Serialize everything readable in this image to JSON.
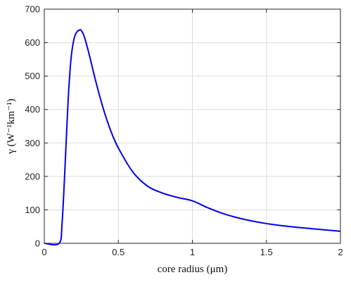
{
  "chart_data": {
    "type": "line",
    "title": "",
    "xlabel": "core radius (μm)",
    "ylabel": "γ (W⁻¹km⁻¹)",
    "xlim": [
      0,
      2
    ],
    "ylim": [
      0,
      700
    ],
    "grid": true,
    "x_ticks": [
      0,
      0.5,
      1,
      1.5,
      2
    ],
    "y_ticks": [
      0,
      100,
      200,
      300,
      400,
      500,
      600,
      700
    ],
    "x_tick_labels": [
      "0",
      "0.5",
      "1",
      "1.5",
      "2"
    ],
    "y_tick_labels": [
      "0",
      "100",
      "200",
      "300",
      "400",
      "500",
      "600",
      "700"
    ],
    "series": [
      {
        "color": "#0000ee",
        "x": [
          0,
          0.1,
          0.12,
          0.14,
          0.16,
          0.18,
          0.2,
          0.22,
          0.24,
          0.25,
          0.27,
          0.3,
          0.35,
          0.4,
          0.45,
          0.5,
          0.6,
          0.7,
          0.8,
          0.9,
          1.0,
          1.1,
          1.2,
          1.3,
          1.4,
          1.5,
          1.6,
          1.7,
          1.8,
          1.9,
          2.0
        ],
        "y": [
          0,
          0,
          60,
          230,
          420,
          550,
          610,
          632,
          638,
          636,
          618,
          570,
          480,
          400,
          335,
          285,
          212,
          170,
          150,
          137,
          127,
          107,
          90,
          77,
          67,
          59,
          53,
          48,
          44,
          40,
          36
        ]
      }
    ]
  }
}
